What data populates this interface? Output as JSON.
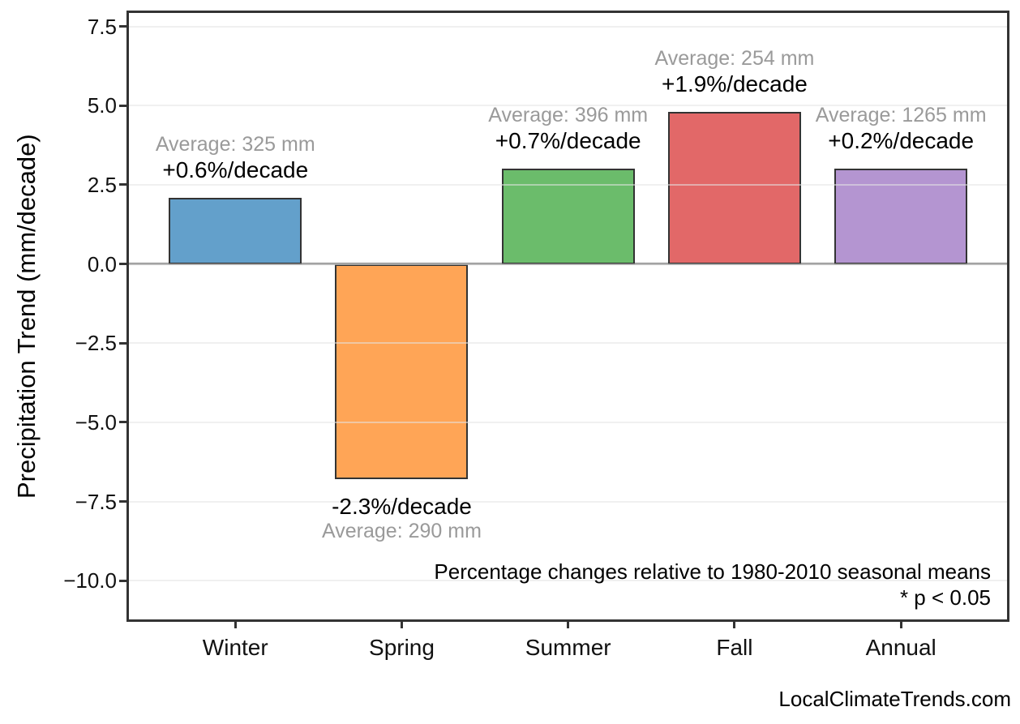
{
  "footer": {
    "text": "LocalClimateTrends.com"
  },
  "chart_data": {
    "type": "bar",
    "title": "",
    "xlabel": "",
    "ylabel": "Precipitation Trend (mm/decade)",
    "units": "mm/decade",
    "categories": [
      "Winter",
      "Spring",
      "Summer",
      "Fall",
      "Annual"
    ],
    "values": [
      2.1,
      -6.8,
      3.0,
      4.8,
      3.0
    ],
    "averages_mm": [
      325,
      290,
      396,
      254,
      1265
    ],
    "average_labels": [
      "Average: 325 mm",
      "Average: 290 mm",
      "Average: 396 mm",
      "Average: 254 mm",
      "Average: 1265 mm"
    ],
    "trend_labels": [
      "+0.6%/decade",
      "-2.3%/decade",
      "+0.7%/decade",
      "+1.9%/decade",
      "+0.2%/decade"
    ],
    "bar_colors": [
      "#63A0CB",
      "#FFA556",
      "#6BBC6B",
      "#E26868",
      "#B495D1"
    ],
    "bar_edge_color": "#333333",
    "ytick_labels": [
      "7.5",
      "5.0",
      "2.5",
      "0.0",
      "−2.5",
      "−5.0",
      "−7.5",
      "−10.0"
    ],
    "ytick_values": [
      7.5,
      5.0,
      2.5,
      0.0,
      -2.5,
      -5.0,
      -7.5,
      -10.0
    ],
    "ylim": [
      -11.25,
      7.95
    ],
    "grid": "horizontal",
    "legend": "none",
    "zero_line_color": "#8a8a8a",
    "annotation_gray_color": "#9a9a9a",
    "notes": [
      "Percentage changes relative to 1980-2010 seasonal means",
      "* p < 0.05"
    ]
  }
}
